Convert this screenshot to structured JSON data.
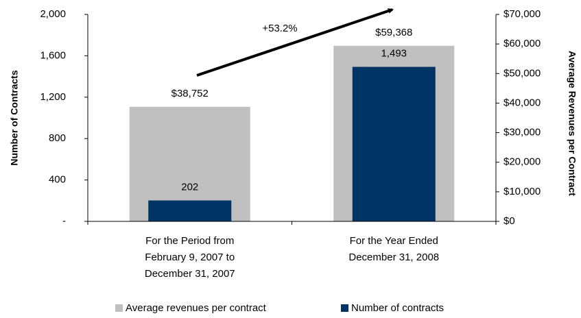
{
  "chart_data": {
    "type": "bar",
    "categories": [
      "For the Period from\nFebruary 9, 2007 to\nDecember 31, 2007",
      "For the Year Ended\nDecember 31, 2008"
    ],
    "series": [
      {
        "name": "Average revenues per contract",
        "color": "#c0c0c0",
        "axis": "y2",
        "values": [
          38752,
          59368
        ],
        "value_labels": [
          "$38,752",
          "$59,368"
        ]
      },
      {
        "name": "Number of contracts",
        "color": "#003366",
        "axis": "y",
        "values": [
          202,
          1493
        ],
        "value_labels": [
          "202",
          "1,493"
        ]
      }
    ],
    "ylabel": "Number of Contracts",
    "y2label": "Average Revenues per Contract",
    "ylim": [
      0,
      2000
    ],
    "yticks": [
      {
        "value": 0,
        "label": "-"
      },
      400,
      800,
      {
        "value": 1200,
        "label": "1,200"
      },
      {
        "value": 1600,
        "label": "1,600"
      },
      {
        "value": 2000,
        "label": "2,000"
      }
    ],
    "y2lim": [
      0,
      70000
    ],
    "y2ticks": [
      {
        "value": 0,
        "label": "$0"
      },
      {
        "value": 10000,
        "label": "$10,000"
      },
      {
        "value": 20000,
        "label": "$20,000"
      },
      {
        "value": 30000,
        "label": "$30,000"
      },
      {
        "value": 40000,
        "label": "$40,000"
      },
      {
        "value": 50000,
        "label": "$50,000"
      },
      {
        "value": 60000,
        "label": "$60,000"
      },
      {
        "value": 70000,
        "label": "$70,000"
      }
    ],
    "annotation": "+53.2%",
    "legend": "bottom"
  }
}
